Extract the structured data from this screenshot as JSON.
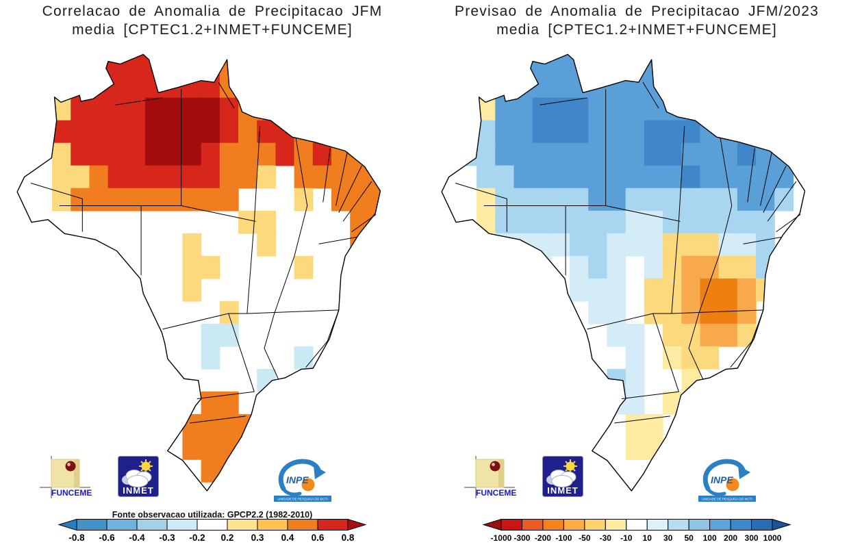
{
  "panels": [
    {
      "id": "left",
      "title_line1": "Correlacao de Anomalia de Precipitacao JFM",
      "title_line2": "media [CPTEC1.2+INMET+FUNCEME]",
      "source_note": "Fonte observacao utilizada: GPCP2.2 (1982-2010)",
      "colorbar": {
        "ticks": [
          "-0.8",
          "-0.6",
          "-0.4",
          "-0.3",
          "-0.2",
          "0.2",
          "0.3",
          "0.4",
          "0.6",
          "0.8"
        ],
        "segment_colors": [
          "#4292c6",
          "#6fb2dd",
          "#a2d1ea",
          "#cfe9f5",
          "#ffffff",
          "#fee391",
          "#fec44f",
          "#f07d1e",
          "#d7261c"
        ],
        "arrow_left_color": "#2b7bbf",
        "arrow_right_color": "#a50f15"
      },
      "palette": {
        "y": "#fcd97c",
        "o": "#f07d1e",
        "r": "#d7261c",
        "R": "#a30d0d",
        "b": "#c9eaf5"
      },
      "grid_rows": [
        "....rrrrrrrooo......",
        "...rrrrrrrrooo......",
        "..yrrrrRRRRroooo....",
        ".yrrrrrRRRRrorroooo.",
        "..yrrrrRRRrooororooo",
        "..yyorrrrrrooy.ooooo",
        "..yooooooooo...y.ooo",
        "............yy....oo",
        ".........y...y....oo",
        ".........yy....y....",
        ".........y..........",
        "...........y........",
        "..........bb........",
        "..........b....b....",
        ".............b......",
        "..........oo........",
        ".........oooo.......",
        ".........oooo.......",
        "..........ooo.......",
        "...................."
      ]
    },
    {
      "id": "right",
      "title_line1": "Previsao de Anomalia de Precipitacao JFM/2023",
      "title_line2": "media [CPTEC1.2+INMET+FUNCEME]",
      "source_note": "",
      "colorbar": {
        "ticks": [
          "-1000",
          "-300",
          "-200",
          "-100",
          "-50",
          "-30",
          "-10",
          "10",
          "30",
          "50",
          "100",
          "200",
          "300",
          "1000"
        ],
        "segment_colors": [
          "#cc1414",
          "#ee5a24",
          "#f5821e",
          "#fcae45",
          "#fed36e",
          "#feeba2",
          "#ffffff",
          "#ddf1f9",
          "#b5def1",
          "#8cc5e6",
          "#5ea6da",
          "#3c88c9",
          "#2a6db5"
        ],
        "arrow_left_color": "#9c0f0f",
        "arrow_right_color": "#1c549c"
      },
      "palette": {
        "y": "#feeba2",
        "Y": "#fcd97c",
        "o": "#f8a94c",
        "O": "#ee8012",
        "l": "#d3ecf8",
        "L": "#a8d5ef",
        "B": "#5a9fd8",
        "D": "#3f87c8"
      },
      "grid_rows": [
        "....BBBBBBBBBB......",
        "..yBBBBBBBBBBB......",
        ".LyBBDDDBBBBBBBB....",
        ".LLBBDDDBBBDDDBBBB..",
        ".LLBBBBBBBBDDBBBDBBB",
        "..LLBBBBBBBBBDBBBBB.",
        "..yLLLLLBBLLLLLLBBL.",
        "..yLLLLLLLllLLLLLL..",
        "...llllLLlllYYYllL..",
        "....ll.lLl.lYooYYL..",
        ".......lll.YYoOOoY..",
        "........ll.YYoOOo...",
        ".........ll.YYooY...",
        "..........l.yYY.....",
        ".........Ll..y......",
        ".........ll.y.......",
        "..........yy........",
        "..........yy........",
        "....................",
        "...................."
      ]
    }
  ],
  "logos": {
    "funceme": {
      "label": "FUNCEME",
      "square_color": "#f0e3a6",
      "ball_color": "#7c1111",
      "label_color": "#1a1acc"
    },
    "inmet": {
      "label": "INMET",
      "square_color": "#20208c",
      "sun_color": "#ffd83d"
    },
    "inpe": {
      "label": "INPE",
      "sub_label": "UNIDADE DE PESQUISA DO MCTI",
      "swoosh_color": "#2b7fc4",
      "ball_color": "#f08a1e",
      "text_color": "#1a5fae"
    }
  }
}
